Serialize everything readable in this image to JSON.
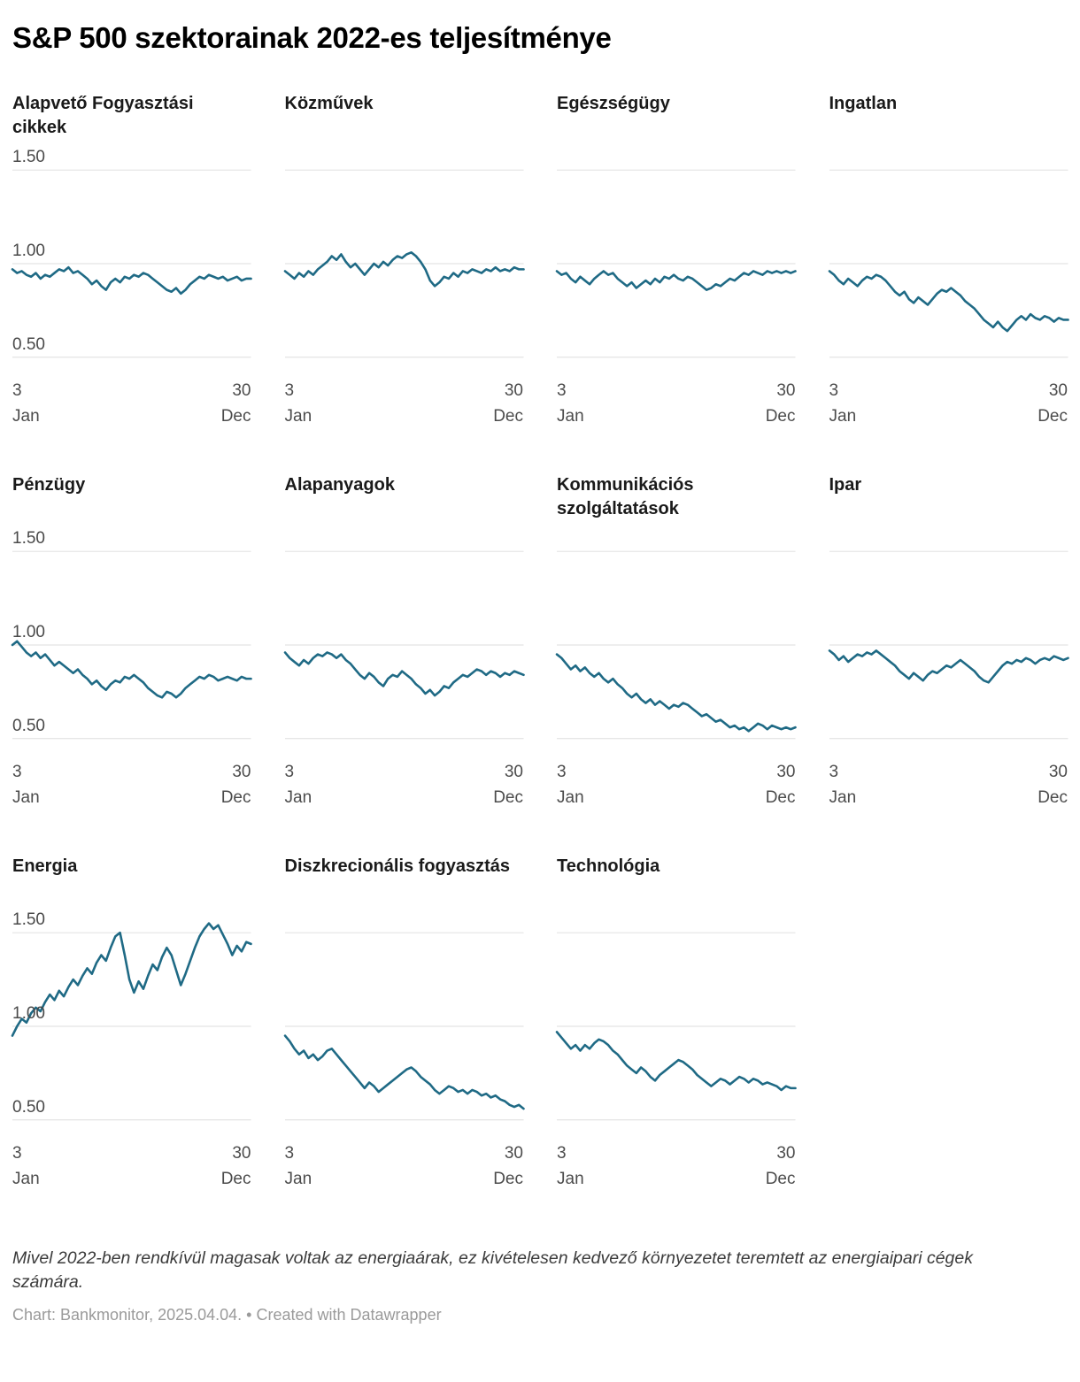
{
  "page": {
    "title": "S&P 500 szektorainak 2022-es teljesítménye",
    "note": "Mivel 2022-ben rendkívül magasak voltak az energiaárak, ez kivételesen kedvező környezetet teremtett az energiaipari cégek számára.",
    "credit": "Chart: Bankmonitor, 2025.04.04. • Created with Datawrapper"
  },
  "chart_data": {
    "type": "line",
    "layout": "small-multiples",
    "grid": "on",
    "line_color": "#1f6a85",
    "grid_color": "#dddddd",
    "y_ticks": [
      1.5,
      1.0,
      0.5
    ],
    "y_tick_labels": [
      "1.50",
      "1.00",
      "0.50"
    ],
    "ylim": [
      0.44,
      1.62
    ],
    "x_axis": {
      "start_day": "3",
      "start_month": "Jan",
      "end_day": "30",
      "end_month": "Dec"
    },
    "x_range": "2022. Jan 3. – Dec 30.",
    "baseline_value": 1.0,
    "panels": [
      {
        "label": "Alapvető Fogyasztási cikkek",
        "values": [
          0.97,
          0.95,
          0.96,
          0.94,
          0.93,
          0.95,
          0.92,
          0.94,
          0.93,
          0.95,
          0.97,
          0.96,
          0.98,
          0.95,
          0.96,
          0.94,
          0.92,
          0.89,
          0.91,
          0.88,
          0.86,
          0.9,
          0.92,
          0.9,
          0.93,
          0.92,
          0.94,
          0.93,
          0.95,
          0.94,
          0.92,
          0.9,
          0.88,
          0.86,
          0.85,
          0.87,
          0.84,
          0.86,
          0.89,
          0.91,
          0.93,
          0.92,
          0.94,
          0.93,
          0.92,
          0.93,
          0.91,
          0.92,
          0.93,
          0.91,
          0.92,
          0.92
        ]
      },
      {
        "label": "Közművek",
        "values": [
          0.96,
          0.94,
          0.92,
          0.95,
          0.93,
          0.96,
          0.94,
          0.97,
          0.99,
          1.01,
          1.04,
          1.02,
          1.05,
          1.01,
          0.98,
          1.0,
          0.97,
          0.94,
          0.97,
          1.0,
          0.98,
          1.01,
          0.99,
          1.02,
          1.04,
          1.03,
          1.05,
          1.06,
          1.04,
          1.01,
          0.97,
          0.91,
          0.88,
          0.9,
          0.93,
          0.92,
          0.95,
          0.93,
          0.96,
          0.95,
          0.97,
          0.96,
          0.95,
          0.97,
          0.96,
          0.98,
          0.96,
          0.97,
          0.96,
          0.98,
          0.97,
          0.97
        ]
      },
      {
        "label": "Egészségügy",
        "values": [
          0.96,
          0.94,
          0.95,
          0.92,
          0.9,
          0.93,
          0.91,
          0.89,
          0.92,
          0.94,
          0.96,
          0.94,
          0.95,
          0.92,
          0.9,
          0.88,
          0.9,
          0.87,
          0.89,
          0.91,
          0.89,
          0.92,
          0.9,
          0.93,
          0.92,
          0.94,
          0.92,
          0.91,
          0.93,
          0.92,
          0.9,
          0.88,
          0.86,
          0.87,
          0.89,
          0.88,
          0.9,
          0.92,
          0.91,
          0.93,
          0.95,
          0.94,
          0.96,
          0.95,
          0.94,
          0.96,
          0.95,
          0.96,
          0.95,
          0.96,
          0.95,
          0.96
        ]
      },
      {
        "label": "Ingatlan",
        "values": [
          0.96,
          0.94,
          0.91,
          0.89,
          0.92,
          0.9,
          0.88,
          0.91,
          0.93,
          0.92,
          0.94,
          0.93,
          0.91,
          0.88,
          0.85,
          0.83,
          0.85,
          0.81,
          0.79,
          0.82,
          0.8,
          0.78,
          0.81,
          0.84,
          0.86,
          0.85,
          0.87,
          0.85,
          0.83,
          0.8,
          0.78,
          0.76,
          0.73,
          0.7,
          0.68,
          0.66,
          0.69,
          0.66,
          0.64,
          0.67,
          0.7,
          0.72,
          0.7,
          0.73,
          0.71,
          0.7,
          0.72,
          0.71,
          0.69,
          0.71,
          0.7,
          0.7
        ]
      },
      {
        "label": "Pénzügy",
        "values": [
          1.0,
          1.02,
          0.99,
          0.96,
          0.94,
          0.96,
          0.93,
          0.95,
          0.92,
          0.89,
          0.91,
          0.89,
          0.87,
          0.85,
          0.87,
          0.84,
          0.82,
          0.79,
          0.81,
          0.78,
          0.76,
          0.79,
          0.81,
          0.8,
          0.83,
          0.82,
          0.84,
          0.82,
          0.8,
          0.77,
          0.75,
          0.73,
          0.72,
          0.75,
          0.74,
          0.72,
          0.74,
          0.77,
          0.79,
          0.81,
          0.83,
          0.82,
          0.84,
          0.83,
          0.81,
          0.82,
          0.83,
          0.82,
          0.81,
          0.83,
          0.82,
          0.82
        ]
      },
      {
        "label": "Alapanyagok",
        "values": [
          0.96,
          0.93,
          0.91,
          0.89,
          0.92,
          0.9,
          0.93,
          0.95,
          0.94,
          0.96,
          0.95,
          0.93,
          0.95,
          0.92,
          0.9,
          0.87,
          0.84,
          0.82,
          0.85,
          0.83,
          0.8,
          0.78,
          0.82,
          0.84,
          0.83,
          0.86,
          0.84,
          0.82,
          0.79,
          0.77,
          0.74,
          0.76,
          0.73,
          0.75,
          0.78,
          0.77,
          0.8,
          0.82,
          0.84,
          0.83,
          0.85,
          0.87,
          0.86,
          0.84,
          0.86,
          0.85,
          0.83,
          0.85,
          0.84,
          0.86,
          0.85,
          0.84
        ]
      },
      {
        "label": "Kommunikációs szolgáltatások",
        "values": [
          0.95,
          0.93,
          0.9,
          0.87,
          0.89,
          0.86,
          0.88,
          0.85,
          0.83,
          0.85,
          0.82,
          0.8,
          0.82,
          0.79,
          0.77,
          0.74,
          0.72,
          0.74,
          0.71,
          0.69,
          0.71,
          0.68,
          0.7,
          0.68,
          0.66,
          0.68,
          0.67,
          0.69,
          0.68,
          0.66,
          0.64,
          0.62,
          0.63,
          0.61,
          0.59,
          0.6,
          0.58,
          0.56,
          0.57,
          0.55,
          0.56,
          0.54,
          0.56,
          0.58,
          0.57,
          0.55,
          0.57,
          0.56,
          0.55,
          0.56,
          0.55,
          0.56
        ]
      },
      {
        "label": "Ipar",
        "values": [
          0.97,
          0.95,
          0.92,
          0.94,
          0.91,
          0.93,
          0.95,
          0.94,
          0.96,
          0.95,
          0.97,
          0.95,
          0.93,
          0.91,
          0.89,
          0.86,
          0.84,
          0.82,
          0.85,
          0.83,
          0.81,
          0.84,
          0.86,
          0.85,
          0.87,
          0.89,
          0.88,
          0.9,
          0.92,
          0.9,
          0.88,
          0.86,
          0.83,
          0.81,
          0.8,
          0.83,
          0.86,
          0.89,
          0.91,
          0.9,
          0.92,
          0.91,
          0.93,
          0.92,
          0.9,
          0.92,
          0.93,
          0.92,
          0.94,
          0.93,
          0.92,
          0.93
        ]
      },
      {
        "label": "Energia",
        "values": [
          0.95,
          1.0,
          1.04,
          1.02,
          1.07,
          1.1,
          1.08,
          1.13,
          1.17,
          1.14,
          1.19,
          1.16,
          1.21,
          1.25,
          1.22,
          1.27,
          1.31,
          1.28,
          1.34,
          1.38,
          1.35,
          1.42,
          1.48,
          1.5,
          1.38,
          1.25,
          1.18,
          1.24,
          1.2,
          1.27,
          1.33,
          1.3,
          1.37,
          1.42,
          1.38,
          1.3,
          1.22,
          1.28,
          1.35,
          1.42,
          1.48,
          1.52,
          1.55,
          1.52,
          1.54,
          1.49,
          1.44,
          1.38,
          1.43,
          1.4,
          1.45,
          1.44
        ]
      },
      {
        "label": "Diszkrecionális fogyasztás",
        "values": [
          0.95,
          0.92,
          0.88,
          0.85,
          0.87,
          0.83,
          0.85,
          0.82,
          0.84,
          0.87,
          0.88,
          0.85,
          0.82,
          0.79,
          0.76,
          0.73,
          0.7,
          0.67,
          0.7,
          0.68,
          0.65,
          0.67,
          0.69,
          0.71,
          0.73,
          0.75,
          0.77,
          0.78,
          0.76,
          0.73,
          0.71,
          0.69,
          0.66,
          0.64,
          0.66,
          0.68,
          0.67,
          0.65,
          0.66,
          0.64,
          0.66,
          0.65,
          0.63,
          0.64,
          0.62,
          0.63,
          0.61,
          0.6,
          0.58,
          0.57,
          0.58,
          0.56
        ]
      },
      {
        "label": "Technológia",
        "values": [
          0.97,
          0.94,
          0.91,
          0.88,
          0.9,
          0.87,
          0.9,
          0.88,
          0.91,
          0.93,
          0.92,
          0.9,
          0.87,
          0.85,
          0.82,
          0.79,
          0.77,
          0.75,
          0.78,
          0.76,
          0.73,
          0.71,
          0.74,
          0.76,
          0.78,
          0.8,
          0.82,
          0.81,
          0.79,
          0.77,
          0.74,
          0.72,
          0.7,
          0.68,
          0.7,
          0.72,
          0.71,
          0.69,
          0.71,
          0.73,
          0.72,
          0.7,
          0.72,
          0.71,
          0.69,
          0.7,
          0.69,
          0.68,
          0.66,
          0.68,
          0.67,
          0.67
        ]
      }
    ]
  }
}
